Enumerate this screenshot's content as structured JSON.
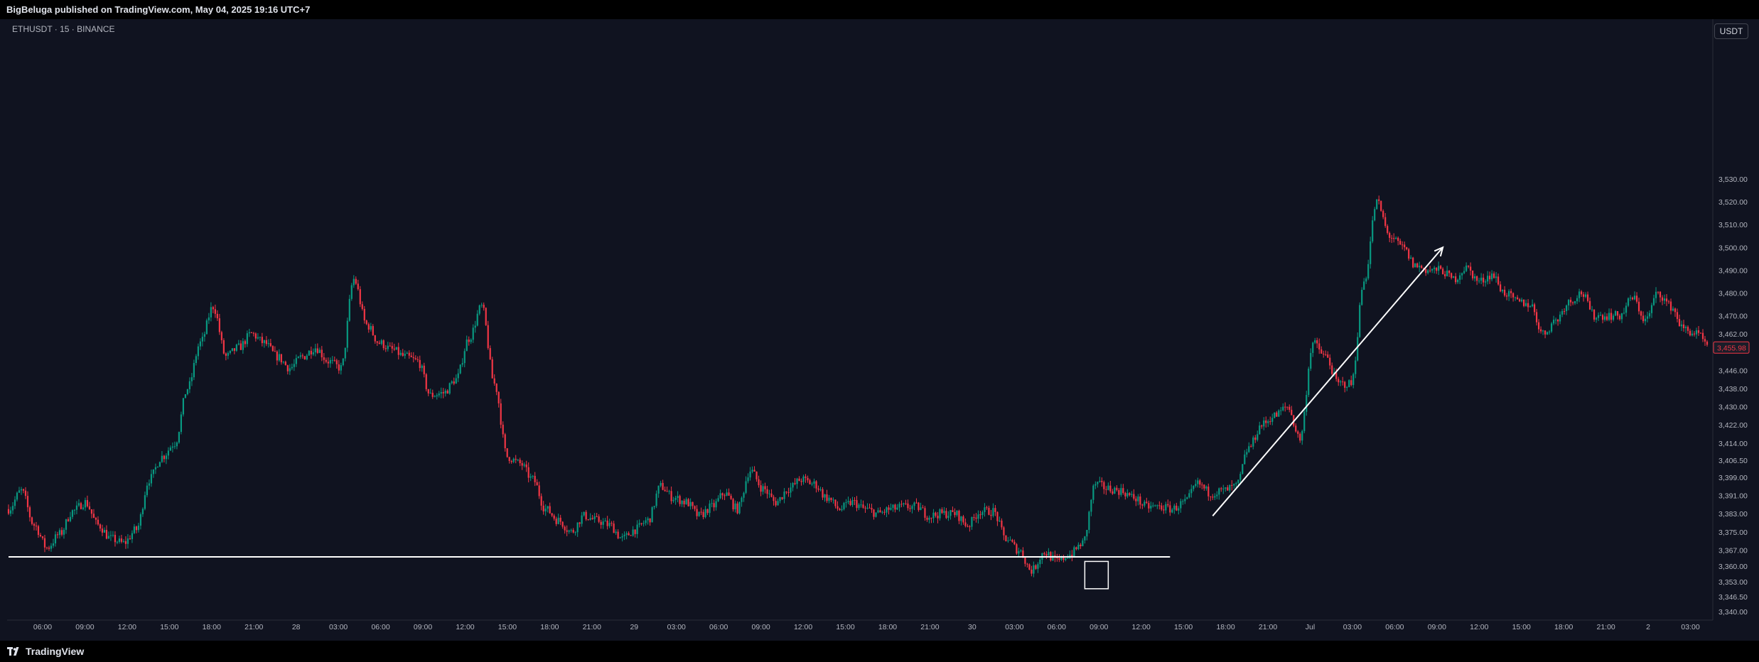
{
  "header": {
    "publish_text": "BigBeluga published on TradingView.com, May 04, 2025 19:16 UTC+7"
  },
  "symbol": {
    "label": "ETHUSDT · 15 · BINANCE"
  },
  "currency_button": {
    "label": "USDT"
  },
  "footer": {
    "brand": "TradingView"
  },
  "chart_data": {
    "type": "candlestick",
    "title": "",
    "xlabel": "",
    "ylabel": "",
    "ylim": [
      3340,
      3530
    ],
    "grid": false,
    "colors": {
      "up": "#089981",
      "down": "#f23645",
      "background": "#101320",
      "axis_text": "#b2b5be",
      "last_price": "#f23645"
    },
    "y_ticks": [
      "3,530.00",
      "3,520.00",
      "3,510.00",
      "3,500.00",
      "3,490.00",
      "3,480.00",
      "3,470.00",
      "3,462.00",
      "3,446.00",
      "3,438.00",
      "3,430.00",
      "3,422.00",
      "3,414.00",
      "3,406.50",
      "3,399.00",
      "3,391.00",
      "3,383.00",
      "3,375.00",
      "3,367.00",
      "3,360.00",
      "3,353.00",
      "3,346.50",
      "3,340.00"
    ],
    "y_tick_values": [
      3530,
      3520,
      3510,
      3500,
      3490,
      3480,
      3470,
      3462,
      3446,
      3438,
      3430,
      3422,
      3414,
      3406.5,
      3399,
      3391,
      3383,
      3375,
      3367,
      3360,
      3353,
      3346.5,
      3340
    ],
    "x_ticks": [
      "06:00",
      "09:00",
      "12:00",
      "15:00",
      "18:00",
      "21:00",
      "28",
      "03:00",
      "06:00",
      "09:00",
      "12:00",
      "15:00",
      "18:00",
      "21:00",
      "29",
      "03:00",
      "06:00",
      "09:00",
      "12:00",
      "15:00",
      "18:00",
      "21:00",
      "30",
      "03:00",
      "06:00",
      "09:00",
      "12:00",
      "15:00",
      "18:00",
      "21:00",
      "Jul",
      "03:00",
      "06:00",
      "09:00",
      "12:00",
      "15:00",
      "18:00",
      "21:00",
      "2",
      "03:00"
    ],
    "last_price": {
      "label": "3,455.98",
      "value": 3455.98
    },
    "anchors": [
      [
        0,
        3385
      ],
      [
        6,
        3393
      ],
      [
        12,
        3378
      ],
      [
        18,
        3368
      ],
      [
        24,
        3374
      ],
      [
        30,
        3384
      ],
      [
        36,
        3388
      ],
      [
        42,
        3378
      ],
      [
        48,
        3372
      ],
      [
        54,
        3370
      ],
      [
        60,
        3376
      ],
      [
        66,
        3398
      ],
      [
        72,
        3408
      ],
      [
        78,
        3414
      ],
      [
        84,
        3438
      ],
      [
        90,
        3458
      ],
      [
        96,
        3474
      ],
      [
        102,
        3452
      ],
      [
        108,
        3456
      ],
      [
        114,
        3462
      ],
      [
        120,
        3458
      ],
      [
        126,
        3452
      ],
      [
        132,
        3447
      ],
      [
        138,
        3452
      ],
      [
        144,
        3456
      ],
      [
        150,
        3450
      ],
      [
        156,
        3447
      ],
      [
        162,
        3486
      ],
      [
        168,
        3466
      ],
      [
        174,
        3458
      ],
      [
        180,
        3455
      ],
      [
        186,
        3452
      ],
      [
        192,
        3450
      ],
      [
        198,
        3435
      ],
      [
        204,
        3436
      ],
      [
        210,
        3442
      ],
      [
        216,
        3460
      ],
      [
        222,
        3474
      ],
      [
        228,
        3440
      ],
      [
        234,
        3408
      ],
      [
        240,
        3405
      ],
      [
        246,
        3398
      ],
      [
        252,
        3385
      ],
      [
        258,
        3380
      ],
      [
        264,
        3375
      ],
      [
        270,
        3382
      ],
      [
        276,
        3380
      ],
      [
        282,
        3378
      ],
      [
        288,
        3372
      ],
      [
        294,
        3376
      ],
      [
        300,
        3380
      ],
      [
        306,
        3395
      ],
      [
        312,
        3390
      ],
      [
        318,
        3388
      ],
      [
        324,
        3382
      ],
      [
        330,
        3386
      ],
      [
        336,
        3392
      ],
      [
        342,
        3385
      ],
      [
        348,
        3402
      ],
      [
        354,
        3394
      ],
      [
        360,
        3388
      ],
      [
        366,
        3394
      ],
      [
        372,
        3398
      ],
      [
        378,
        3396
      ],
      [
        384,
        3390
      ],
      [
        390,
        3385
      ],
      [
        396,
        3388
      ],
      [
        402,
        3385
      ],
      [
        408,
        3383
      ],
      [
        414,
        3385
      ],
      [
        420,
        3386
      ],
      [
        426,
        3386
      ],
      [
        432,
        3382
      ],
      [
        438,
        3383
      ],
      [
        444,
        3383
      ],
      [
        450,
        3378
      ],
      [
        456,
        3384
      ],
      [
        462,
        3384
      ],
      [
        468,
        3372
      ],
      [
        474,
        3367
      ],
      [
        480,
        3358
      ],
      [
        486,
        3366
      ],
      [
        492,
        3362
      ],
      [
        498,
        3365
      ],
      [
        504,
        3370
      ],
      [
        510,
        3396
      ],
      [
        516,
        3394
      ],
      [
        522,
        3393
      ],
      [
        528,
        3390
      ],
      [
        534,
        3386
      ],
      [
        540,
        3386
      ],
      [
        546,
        3385
      ],
      [
        552,
        3388
      ],
      [
        558,
        3396
      ],
      [
        564,
        3392
      ],
      [
        570,
        3393
      ],
      [
        576,
        3395
      ],
      [
        582,
        3412
      ],
      [
        588,
        3422
      ],
      [
        594,
        3426
      ],
      [
        600,
        3430
      ],
      [
        606,
        3416
      ],
      [
        612,
        3458
      ],
      [
        618,
        3452
      ],
      [
        624,
        3440
      ],
      [
        630,
        3440
      ],
      [
        636,
        3485
      ],
      [
        642,
        3520
      ],
      [
        648,
        3505
      ],
      [
        654,
        3500
      ],
      [
        660,
        3492
      ],
      [
        666,
        3490
      ],
      [
        672,
        3490
      ],
      [
        678,
        3486
      ],
      [
        684,
        3491
      ],
      [
        690,
        3485
      ],
      [
        696,
        3488
      ],
      [
        702,
        3480
      ],
      [
        708,
        3476
      ],
      [
        714,
        3475
      ],
      [
        720,
        3462
      ],
      [
        726,
        3468
      ],
      [
        732,
        3476
      ],
      [
        738,
        3480
      ],
      [
        744,
        3470
      ],
      [
        750,
        3470
      ],
      [
        756,
        3470
      ],
      [
        762,
        3478
      ],
      [
        768,
        3468
      ],
      [
        774,
        3480
      ],
      [
        780,
        3474
      ],
      [
        786,
        3464
      ],
      [
        792,
        3462
      ],
      [
        798,
        3456
      ]
    ],
    "candles_count": 798,
    "annotations": [
      {
        "type": "horizontal_segment",
        "price": 3364,
        "x_from": 0,
        "x_to": 545,
        "color": "#ffffff"
      },
      {
        "type": "rectangle",
        "price_top": 3362,
        "price_bottom": 3350,
        "x_from": 505,
        "x_to": 516,
        "color": "#ffffff"
      },
      {
        "type": "arrow",
        "from": [
          565,
          3382
        ],
        "to": [
          673,
          3500
        ],
        "color": "#ffffff"
      }
    ]
  }
}
